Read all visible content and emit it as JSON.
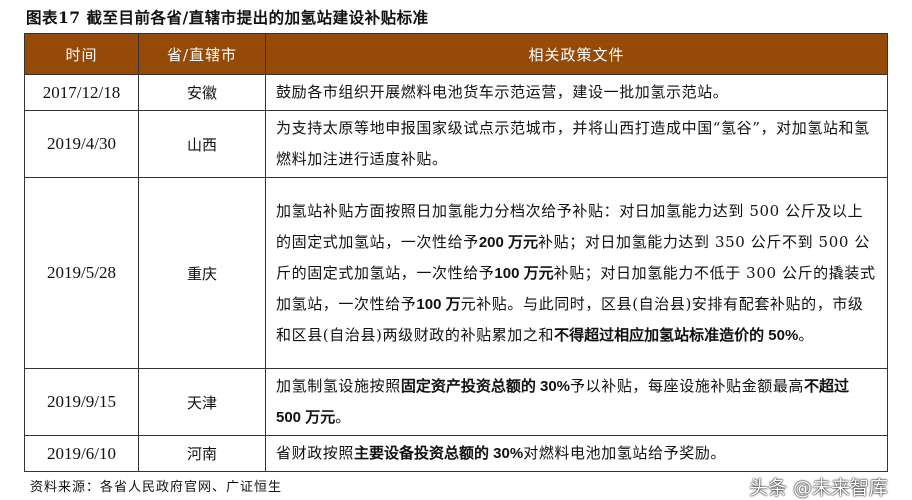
{
  "title": "图表17 截至目前各省/直辖市提出的加氢站建设补贴标准",
  "headers": [
    "时间",
    "省/直辖市",
    "相关政策文件"
  ],
  "header_color": "#964a08",
  "rows": [
    {
      "date": "2017/12/18",
      "region": "安徽",
      "segments": [
        {
          "text": "鼓励各市组织开展燃料电池货车示范运营，建设一批加氢示范站。",
          "bold": false
        }
      ]
    },
    {
      "date": "2019/4/30",
      "region": "山西",
      "segments": [
        {
          "text": "为支持太原等地申报国家级试点示范城市，并将山西打造成中国“氢谷”，对加氢站和氢燃料加注进行适度补贴。",
          "bold": false
        }
      ]
    },
    {
      "date": "2019/5/28",
      "region": "重庆",
      "segments": [
        {
          "text": "加氢站补贴方面按照日加氢能力分档次给予补贴：对日加氢能力达到 500 公斤及以上的固定式加氢站，一次性给予",
          "bold": false
        },
        {
          "text": "200 万元",
          "bold": true
        },
        {
          "text": "补贴；对日加氢能力达到 350 公斤不到 500 公斤的固定式加氢站，一次性给予",
          "bold": false
        },
        {
          "text": "100 万元",
          "bold": true
        },
        {
          "text": "补贴；对日加氢能力不低于 300 公斤的撬装式加氢站，一次性给予",
          "bold": false
        },
        {
          "text": "100 万",
          "bold": true
        },
        {
          "text": "元补贴。与此同时，区县(自治县)安排有配套补贴的，市级和区县(自治县)两级财政的补贴累加之和",
          "bold": false
        },
        {
          "text": "不得超过相应加氢站标准造价的 50%",
          "bold": true
        },
        {
          "text": "。",
          "bold": false
        }
      ]
    },
    {
      "date": "2019/9/15",
      "region": "天津",
      "segments": [
        {
          "text": "加氢制氢设施按照",
          "bold": false
        },
        {
          "text": "固定资产投资总额的 30%",
          "bold": true
        },
        {
          "text": "予以补贴，每座设施补贴金额最高",
          "bold": false
        },
        {
          "text": "不超过 500 万元",
          "bold": true
        },
        {
          "text": "。",
          "bold": false
        }
      ]
    },
    {
      "date": "2019/6/10",
      "region": "河南",
      "segments": [
        {
          "text": "省财政按照",
          "bold": false
        },
        {
          "text": "主要设备投资总额的 30%",
          "bold": true
        },
        {
          "text": "对燃料电池加氢站给予奖励。",
          "bold": false
        }
      ]
    }
  ],
  "source": "资料来源：各省人民政府官网、广证恒生",
  "watermark": "头条 @未来智库"
}
